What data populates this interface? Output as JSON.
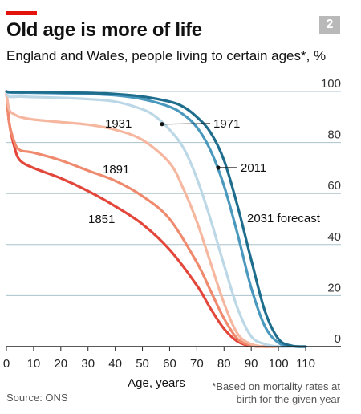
{
  "header": {
    "badge": "2",
    "title": "Old age is more of life",
    "subtitle": "England and Wales, people living to certain ages*, %"
  },
  "footer": {
    "source": "Source: ONS",
    "footnote_line1": "*Based on mortality rates at",
    "footnote_line2": "birth for the given year"
  },
  "colors": {
    "accent": "#e3120b",
    "s1851": "#e3463a",
    "s1891": "#ef8a6e",
    "s1931": "#f6b7a0",
    "s1971": "#bcd8e6",
    "s2011": "#4a98be",
    "s2031": "#1e6d8d",
    "grid": "#a9c3cc"
  },
  "chart_data": {
    "type": "line",
    "title": "Old age is more of life",
    "subtitle": "England and Wales, people living to certain ages*, %",
    "xlabel": "Age, years",
    "ylabel": "",
    "xlim": [
      0,
      110
    ],
    "ylim": [
      0,
      100
    ],
    "xticks": [
      0,
      10,
      20,
      30,
      40,
      50,
      60,
      70,
      80,
      90,
      100,
      110
    ],
    "yticks": [
      0,
      20,
      40,
      60,
      80,
      100
    ],
    "grid": true,
    "y_axis_side": "right",
    "series": [
      {
        "name": "1851",
        "color": "#e3463a",
        "x": [
          0,
          1,
          3,
          5,
          10,
          20,
          30,
          40,
          50,
          60,
          70,
          75,
          80,
          85,
          90,
          95,
          100
        ],
        "y": [
          100,
          88,
          78,
          73,
          70,
          66,
          61,
          55,
          48,
          38,
          24,
          15,
          7,
          2,
          0.3,
          0,
          0
        ]
      },
      {
        "name": "1891",
        "color": "#ef8a6e",
        "x": [
          0,
          1,
          3,
          5,
          10,
          20,
          30,
          40,
          50,
          60,
          70,
          75,
          80,
          85,
          90,
          95,
          100
        ],
        "y": [
          100,
          88,
          80,
          77,
          76,
          73,
          69,
          65,
          59,
          50,
          33,
          22,
          11,
          3,
          0.5,
          0,
          0
        ]
      },
      {
        "name": "1931",
        "color": "#f6b7a0",
        "x": [
          0,
          1,
          3,
          5,
          10,
          20,
          30,
          40,
          50,
          60,
          65,
          70,
          75,
          80,
          85,
          90,
          95,
          100
        ],
        "y": [
          100,
          93,
          91,
          90,
          89,
          88,
          87,
          85,
          81,
          72,
          62,
          49,
          33,
          17,
          5,
          1,
          0,
          0
        ]
      },
      {
        "name": "1971",
        "color": "#bcd8e6",
        "x": [
          0,
          1,
          5,
          10,
          20,
          30,
          40,
          50,
          55,
          60,
          65,
          70,
          75,
          80,
          85,
          90,
          95,
          100,
          105
        ],
        "y": [
          100,
          98,
          98,
          97.8,
          97.5,
          97,
          96,
          93,
          90,
          85,
          78,
          66,
          50,
          32,
          15,
          4,
          1,
          0,
          0
        ]
      },
      {
        "name": "2011",
        "color": "#4a98be",
        "x": [
          0,
          1,
          5,
          10,
          20,
          30,
          40,
          50,
          60,
          65,
          70,
          75,
          80,
          85,
          90,
          95,
          100,
          105,
          110
        ],
        "y": [
          100,
          99.6,
          99.5,
          99.5,
          99.3,
          99,
          98.5,
          97,
          94,
          91,
          86,
          77,
          63,
          44,
          23,
          8,
          1.5,
          0.2,
          0
        ]
      },
      {
        "name": "2031 forecast",
        "color": "#1e6d8d",
        "x": [
          0,
          1,
          5,
          10,
          20,
          30,
          40,
          50,
          60,
          65,
          70,
          75,
          80,
          85,
          90,
          95,
          100,
          105,
          110
        ],
        "y": [
          100,
          99.8,
          99.7,
          99.7,
          99.6,
          99.4,
          99,
          98,
          96,
          94,
          90,
          84,
          73,
          55,
          34,
          14,
          3,
          0.3,
          0
        ]
      }
    ],
    "annotations": [
      "1851",
      "1891",
      "1931",
      "1971",
      "2011",
      "2031 forecast"
    ]
  }
}
